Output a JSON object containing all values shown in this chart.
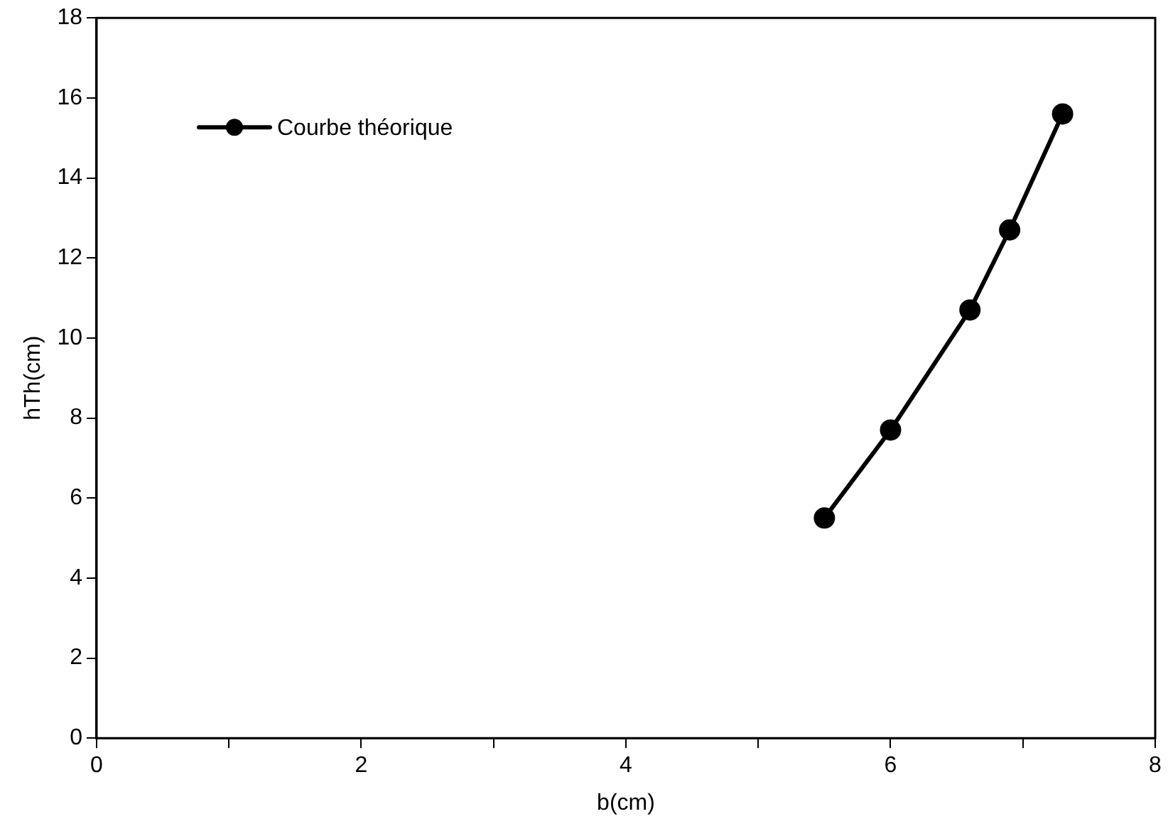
{
  "chart_data": {
    "type": "line",
    "xlabel": "b(cm)",
    "ylabel": "hTh(cm)",
    "x": [
      5.5,
      6.0,
      6.6,
      6.9,
      7.3
    ],
    "series": [
      {
        "name": "Courbe théorique",
        "color": "#000000",
        "values": [
          5.5,
          7.7,
          10.7,
          12.7,
          15.6
        ]
      }
    ],
    "xlim": [
      0,
      8
    ],
    "xticks": [
      0,
      {
        "value": 1,
        "label": null
      },
      2,
      {
        "value": 3,
        "label": null
      },
      4,
      {
        "value": 5,
        "label": null
      },
      6,
      {
        "value": 7,
        "label": null
      },
      8
    ],
    "ylim": [
      0,
      18
    ],
    "yticks": [
      0,
      2,
      4,
      6,
      8,
      10,
      12,
      14,
      16,
      18
    ],
    "grid": false,
    "legend": "top left",
    "marker": "circle",
    "line_style": "solid"
  }
}
